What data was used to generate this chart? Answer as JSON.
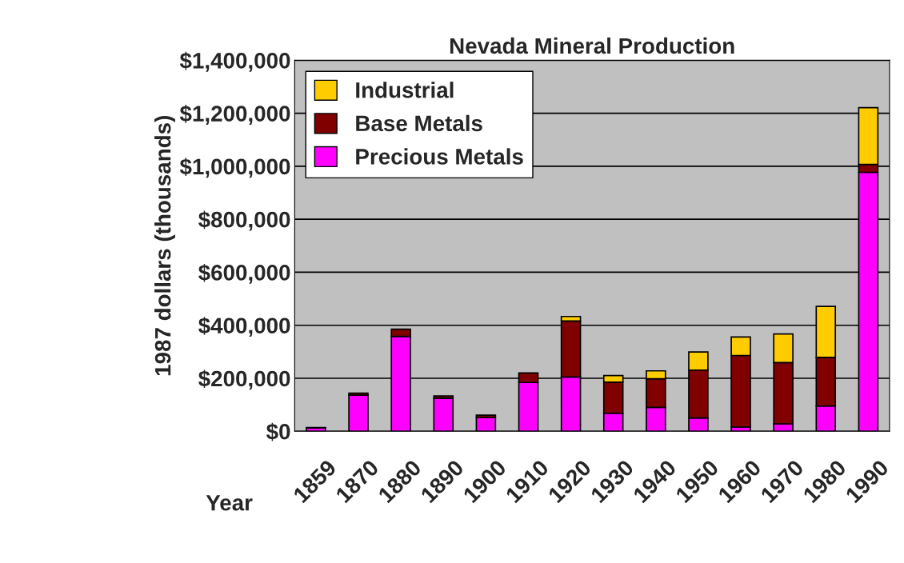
{
  "chart_data": {
    "type": "bar",
    "title": "Nevada Mineral Production",
    "xlabel": "Year",
    "ylabel": "1987 dollars (thousands)",
    "categories": [
      "1859",
      "1870",
      "1880",
      "1890",
      "1900",
      "1910",
      "1920",
      "1930",
      "1940",
      "1950",
      "1960",
      "1970",
      "1980",
      "1990"
    ],
    "stacked": true,
    "series": [
      {
        "name": "Precious Metals",
        "color": "#ff00ff",
        "values": [
          12000,
          136000,
          358000,
          125000,
          52000,
          184000,
          205000,
          68000,
          90000,
          50000,
          16000,
          28000,
          95000,
          977000
        ]
      },
      {
        "name": "Base Metals",
        "color": "#800000",
        "values": [
          2000,
          8000,
          27000,
          8000,
          9000,
          36000,
          211000,
          117000,
          108000,
          181000,
          270000,
          231000,
          184000,
          30000
        ]
      },
      {
        "name": "Industrial",
        "color": "#ffcc00",
        "values": [
          null,
          null,
          null,
          null,
          null,
          null,
          17000,
          25000,
          30000,
          68000,
          70000,
          108000,
          192000,
          214000
        ]
      }
    ],
    "ylim": [
      0,
      1400000
    ],
    "yticks": [
      {
        "value": 0,
        "label": "$0"
      },
      {
        "value": 200000,
        "label": "$200,000"
      },
      {
        "value": 400000,
        "label": "$400,000"
      },
      {
        "value": 600000,
        "label": "$600,000"
      },
      {
        "value": 800000,
        "label": "$800,000"
      },
      {
        "value": 1000000,
        "label": "$1,000,000"
      },
      {
        "value": 1200000,
        "label": "$1,200,000"
      },
      {
        "value": 1400000,
        "label": "$1,400,000"
      }
    ],
    "grid": "y",
    "legend": "top left"
  }
}
